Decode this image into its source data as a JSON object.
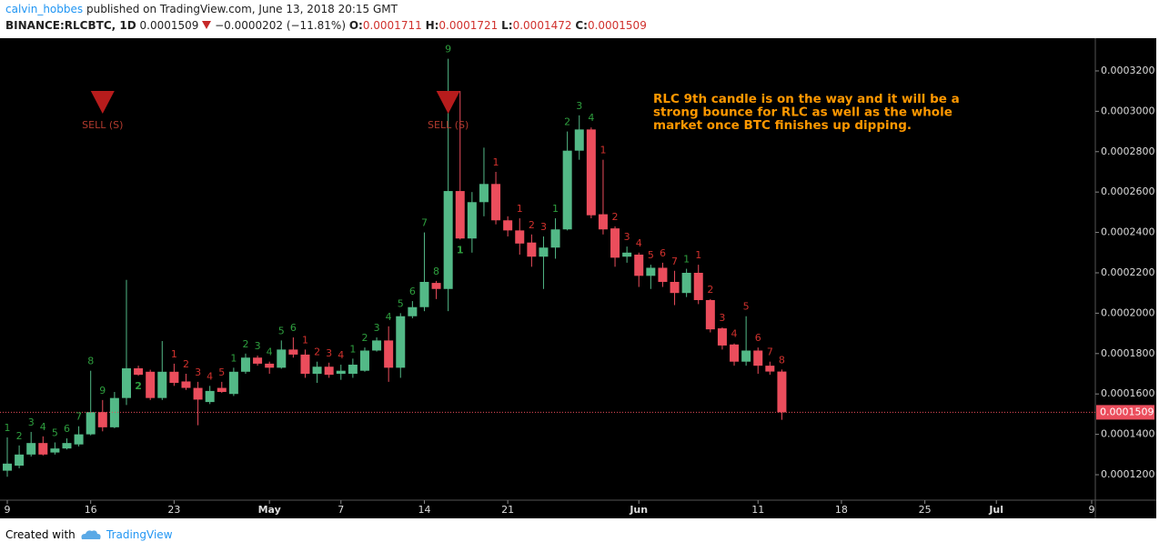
{
  "header": {
    "author": "calvin_hobbes",
    "published": "published on TradingView.com, June 13, 2018 20:15 GMT",
    "symbol": "BINANCE:RLCBTC, 1D",
    "price": "0.0001509",
    "change": "−0.0000202 (−11.81%)",
    "o_label": "O:",
    "o": "0.0001711",
    "h_label": "H:",
    "h": "0.0001721",
    "l_label": "L:",
    "l": "0.0001472",
    "c_label": "C:",
    "c": "0.0001509"
  },
  "footer": {
    "created": "Created with",
    "brand": "TradingView"
  },
  "chart_data": {
    "type": "candlestick",
    "up_color": "#53b987",
    "down_color": "#eb4d5c",
    "x": [
      "2018-04-09",
      "2018-04-10",
      "2018-04-11",
      "2018-04-12",
      "2018-04-13",
      "2018-04-14",
      "2018-04-15",
      "2018-04-16",
      "2018-04-17",
      "2018-04-18",
      "2018-04-19",
      "2018-04-20",
      "2018-04-21",
      "2018-04-22",
      "2018-04-23",
      "2018-04-24",
      "2018-04-25",
      "2018-04-26",
      "2018-04-27",
      "2018-04-28",
      "2018-04-29",
      "2018-04-30",
      "2018-05-01",
      "2018-05-02",
      "2018-05-03",
      "2018-05-04",
      "2018-05-05",
      "2018-05-06",
      "2018-05-07",
      "2018-05-08",
      "2018-05-09",
      "2018-05-10",
      "2018-05-11",
      "2018-05-12",
      "2018-05-13",
      "2018-05-14",
      "2018-05-15",
      "2018-05-16",
      "2018-05-17",
      "2018-05-18",
      "2018-05-19",
      "2018-05-20",
      "2018-05-21",
      "2018-05-22",
      "2018-05-23",
      "2018-05-24",
      "2018-05-25",
      "2018-05-26",
      "2018-05-27",
      "2018-05-28",
      "2018-05-29",
      "2018-05-30",
      "2018-05-31",
      "2018-06-01",
      "2018-06-02",
      "2018-06-03",
      "2018-06-04",
      "2018-06-05",
      "2018-06-06",
      "2018-06-07",
      "2018-06-08",
      "2018-06-09",
      "2018-06-10",
      "2018-06-11",
      "2018-06-12",
      "2018-06-13"
    ],
    "open": [
      0.000122,
      0.0001245,
      0.00013,
      0.0001357,
      0.000131,
      0.000133,
      0.000135,
      0.00014,
      0.000151,
      0.0001435,
      0.000158,
      0.0001727,
      0.000171,
      0.000158,
      0.000171,
      0.0001662,
      0.000163,
      0.000156,
      0.000163,
      0.00016,
      0.000171,
      0.000178,
      0.000175,
      0.000173,
      0.000182,
      0.0001795,
      0.00017,
      0.0001735,
      0.00017,
      0.00017,
      0.0001715,
      0.0001815,
      0.0001865,
      0.000173,
      0.0001985,
      0.000203,
      0.000215,
      0.000212,
      0.0002605,
      0.000237,
      0.000255,
      0.000264,
      0.000246,
      0.000241,
      0.000235,
      0.000228,
      0.0002325,
      0.0002415,
      0.0002805,
      0.000291,
      0.000249,
      0.000242,
      0.000228,
      0.000229,
      0.0002185,
      0.0002225,
      0.0002155,
      0.00021,
      0.00022,
      0.0002065,
      0.0001925,
      0.0001845,
      0.000176,
      0.0001815,
      0.000174,
      0.0001711
    ],
    "high": [
      0.0001385,
      0.0001345,
      0.0001412,
      0.000139,
      0.000136,
      0.000138,
      0.000144,
      0.0001715,
      0.000157,
      0.000161,
      0.0002165,
      0.000174,
      0.000172,
      0.0001862,
      0.000175,
      0.00017,
      0.000166,
      0.000164,
      0.000166,
      0.000173,
      0.00018,
      0.000179,
      0.000176,
      0.0001865,
      0.000188,
      0.000182,
      0.000176,
      0.0001755,
      0.0001745,
      0.0001775,
      0.000183,
      0.000188,
      0.0001935,
      0.0002,
      0.000206,
      0.00024,
      0.000216,
      0.000326,
      0.00031,
      0.00026,
      0.000282,
      0.00027,
      0.000248,
      0.000247,
      0.000239,
      0.000238,
      0.000247,
      0.00029,
      0.000298,
      0.000292,
      0.000276,
      0.000243,
      0.000233,
      0.00023,
      0.000224,
      0.000225,
      0.000221,
      0.000222,
      0.000224,
      0.000207,
      0.000193,
      0.000185,
      0.0001985,
      0.000183,
      0.000176,
      0.0001721
    ],
    "low": [
      0.000119,
      0.0001232,
      0.000129,
      0.0001295,
      0.00013,
      0.0001325,
      0.000134,
      0.0001395,
      0.0001415,
      0.000143,
      0.0001545,
      0.000169,
      0.000157,
      0.000157,
      0.000164,
      0.000162,
      0.0001445,
      0.000155,
      0.0001605,
      0.000159,
      0.00017,
      0.000174,
      0.00017,
      0.0001725,
      0.000178,
      0.000168,
      0.0001655,
      0.000168,
      0.000167,
      0.000168,
      0.000171,
      0.000181,
      0.000166,
      0.000168,
      0.0001975,
      0.000201,
      0.000207,
      0.000201,
      0.0002365,
      0.00023,
      0.000248,
      0.000244,
      0.000238,
      0.000229,
      0.000223,
      0.000212,
      0.000227,
      0.000241,
      0.000276,
      0.000247,
      0.000239,
      0.000223,
      0.000225,
      0.000213,
      0.000212,
      0.000213,
      0.000204,
      0.000208,
      0.0002045,
      0.0001905,
      0.000182,
      0.000174,
      0.000174,
      0.00017,
      0.0001695,
      0.0001472
    ],
    "close": [
      0.0001255,
      0.00013,
      0.0001357,
      0.00013,
      0.000133,
      0.0001357,
      0.00014,
      0.000151,
      0.0001435,
      0.000158,
      0.0001727,
      0.0001695,
      0.000158,
      0.000171,
      0.0001655,
      0.000163,
      0.0001572,
      0.0001615,
      0.000161,
      0.000171,
      0.000178,
      0.000175,
      0.000173,
      0.000182,
      0.0001795,
      0.00017,
      0.0001735,
      0.0001695,
      0.0001715,
      0.0001745,
      0.0001815,
      0.0001865,
      0.000173,
      0.0001985,
      0.000203,
      0.0002155,
      0.000212,
      0.0002605,
      0.000237,
      0.000255,
      0.000264,
      0.000246,
      0.000241,
      0.0002345,
      0.000228,
      0.0002325,
      0.0002415,
      0.0002805,
      0.000291,
      0.0002485,
      0.0002415,
      0.0002275,
      0.00023,
      0.0002185,
      0.0002225,
      0.0002155,
      0.00021,
      0.00022,
      0.0002065,
      0.000192,
      0.000184,
      0.000176,
      0.0001815,
      0.000174,
      0.0001711,
      0.0001509
    ],
    "ylim": [
      0.0001074,
      0.0003362
    ],
    "yticks": [
      {
        "value": 0.00012,
        "label": "0.0001200"
      },
      {
        "value": 0.00014,
        "label": "0.0001400"
      },
      {
        "value": 0.00016,
        "label": "0.0001600"
      },
      {
        "value": 0.00018,
        "label": "0.0001800"
      },
      {
        "value": 0.0002,
        "label": "0.0002000"
      },
      {
        "value": 0.00022,
        "label": "0.0002200"
      },
      {
        "value": 0.00024,
        "label": "0.0002400"
      },
      {
        "value": 0.00026,
        "label": "0.0002600"
      },
      {
        "value": 0.00028,
        "label": "0.0002800"
      },
      {
        "value": 0.0003,
        "label": "0.0003000"
      },
      {
        "value": 0.00032,
        "label": "0.0003200"
      }
    ],
    "xlim": [
      "2018-04-09",
      "2018-07-09"
    ],
    "xticks": [
      {
        "value": "2018-04-09",
        "label": "9"
      },
      {
        "value": "2018-04-16",
        "label": "16"
      },
      {
        "value": "2018-04-23",
        "label": "23"
      },
      {
        "value": "2018-05-01",
        "label": "May"
      },
      {
        "value": "2018-05-07",
        "label": "7"
      },
      {
        "value": "2018-05-14",
        "label": "14"
      },
      {
        "value": "2018-05-21",
        "label": "21"
      },
      {
        "value": "2018-06-01",
        "label": "Jun"
      },
      {
        "value": "2018-06-11",
        "label": "11"
      },
      {
        "value": "2018-06-18",
        "label": "18"
      },
      {
        "value": "2018-06-25",
        "label": "25"
      },
      {
        "value": "2018-07-01",
        "label": "Jul"
      },
      {
        "value": "2018-07-09",
        "label": "9"
      }
    ],
    "td_labels": [
      {
        "x": "2018-04-09",
        "text": "1",
        "color": "#2e9e3e"
      },
      {
        "x": "2018-04-10",
        "text": "2",
        "color": "#2e9e3e"
      },
      {
        "x": "2018-04-11",
        "text": "3",
        "color": "#2e9e3e"
      },
      {
        "x": "2018-04-12",
        "text": "4",
        "color": "#2e9e3e"
      },
      {
        "x": "2018-04-13",
        "text": "5",
        "color": "#2e9e3e"
      },
      {
        "x": "2018-04-14",
        "text": "6",
        "color": "#2e9e3e"
      },
      {
        "x": "2018-04-15",
        "text": "7",
        "color": "#2e9e3e"
      },
      {
        "x": "2018-04-16",
        "text": "8",
        "color": "#2e9e3e"
      },
      {
        "x": "2018-04-17",
        "text": "9",
        "color": "#2e9e3e"
      },
      {
        "x": "2018-04-20",
        "text": "2",
        "color": "#2e9e3e",
        "side": "below"
      },
      {
        "x": "2018-04-23",
        "text": "1",
        "color": "#d0312d"
      },
      {
        "x": "2018-04-24",
        "text": "2",
        "color": "#d0312d"
      },
      {
        "x": "2018-04-25",
        "text": "3",
        "color": "#d0312d"
      },
      {
        "x": "2018-04-26",
        "text": "4",
        "color": "#d0312d"
      },
      {
        "x": "2018-04-27",
        "text": "5",
        "color": "#d0312d"
      },
      {
        "x": "2018-04-28",
        "text": "1",
        "color": "#2e9e3e"
      },
      {
        "x": "2018-04-29",
        "text": "2",
        "color": "#2e9e3e"
      },
      {
        "x": "2018-04-30",
        "text": "3",
        "color": "#2e9e3e"
      },
      {
        "x": "2018-05-01",
        "text": "4",
        "color": "#2e9e3e"
      },
      {
        "x": "2018-05-02",
        "text": "5",
        "color": "#2e9e3e"
      },
      {
        "x": "2018-05-03",
        "text": "6",
        "color": "#2e9e3e"
      },
      {
        "x": "2018-05-04",
        "text": "1",
        "color": "#d0312d"
      },
      {
        "x": "2018-05-05",
        "text": "2",
        "color": "#d0312d"
      },
      {
        "x": "2018-05-06",
        "text": "3",
        "color": "#d0312d"
      },
      {
        "x": "2018-05-07",
        "text": "4",
        "color": "#d0312d"
      },
      {
        "x": "2018-05-08",
        "text": "1",
        "color": "#2e9e3e"
      },
      {
        "x": "2018-05-09",
        "text": "2",
        "color": "#2e9e3e"
      },
      {
        "x": "2018-05-10",
        "text": "3",
        "color": "#2e9e3e"
      },
      {
        "x": "2018-05-11",
        "text": "4",
        "color": "#2e9e3e"
      },
      {
        "x": "2018-05-12",
        "text": "5",
        "color": "#2e9e3e"
      },
      {
        "x": "2018-05-13",
        "text": "6",
        "color": "#2e9e3e"
      },
      {
        "x": "2018-05-14",
        "text": "7",
        "color": "#2e9e3e"
      },
      {
        "x": "2018-05-15",
        "text": "8",
        "color": "#2e9e3e"
      },
      {
        "x": "2018-05-16",
        "text": "9",
        "color": "#2e9e3e"
      },
      {
        "x": "2018-05-17",
        "text": "1",
        "color": "#2e9e3e",
        "side": "below"
      },
      {
        "x": "2018-05-20",
        "text": "1",
        "color": "#d0312d"
      },
      {
        "x": "2018-05-22",
        "text": "1",
        "color": "#d0312d"
      },
      {
        "x": "2018-05-23",
        "text": "2",
        "color": "#d0312d"
      },
      {
        "x": "2018-05-24",
        "text": "3",
        "color": "#d0312d"
      },
      {
        "x": "2018-05-25",
        "text": "1",
        "color": "#2e9e3e"
      },
      {
        "x": "2018-05-26",
        "text": "2",
        "color": "#2e9e3e"
      },
      {
        "x": "2018-05-27",
        "text": "3",
        "color": "#2e9e3e"
      },
      {
        "x": "2018-05-28",
        "text": "4",
        "color": "#2e9e3e"
      },
      {
        "x": "2018-05-29",
        "text": "1",
        "color": "#d0312d"
      },
      {
        "x": "2018-05-30",
        "text": "2",
        "color": "#d0312d"
      },
      {
        "x": "2018-05-31",
        "text": "3",
        "color": "#d0312d"
      },
      {
        "x": "2018-06-01",
        "text": "4",
        "color": "#d0312d"
      },
      {
        "x": "2018-06-02",
        "text": "5",
        "color": "#d0312d"
      },
      {
        "x": "2018-06-03",
        "text": "6",
        "color": "#d0312d"
      },
      {
        "x": "2018-06-04",
        "text": "7",
        "color": "#d0312d"
      },
      {
        "x": "2018-06-05",
        "text": "1",
        "color": "#2e9e3e"
      },
      {
        "x": "2018-06-06",
        "text": "1",
        "color": "#d0312d"
      },
      {
        "x": "2018-06-07",
        "text": "2",
        "color": "#d0312d"
      },
      {
        "x": "2018-06-08",
        "text": "3",
        "color": "#d0312d"
      },
      {
        "x": "2018-06-09",
        "text": "4",
        "color": "#d0312d"
      },
      {
        "x": "2018-06-10",
        "text": "5",
        "color": "#d0312d"
      },
      {
        "x": "2018-06-11",
        "text": "6",
        "color": "#d0312d"
      },
      {
        "x": "2018-06-12",
        "text": "7",
        "color": "#d0312d"
      },
      {
        "x": "2018-06-13",
        "text": "8",
        "color": "#d0312d"
      }
    ],
    "signals": [
      {
        "x": "2018-04-17",
        "text": "SELL (S)"
      },
      {
        "x": "2018-05-16",
        "text": "SELL (S)"
      }
    ],
    "note": [
      "RLC 9th candle is on the way and it will be a",
      "strong bounce for RLC as well as the whole",
      "market once BTC finishes up dipping."
    ]
  }
}
